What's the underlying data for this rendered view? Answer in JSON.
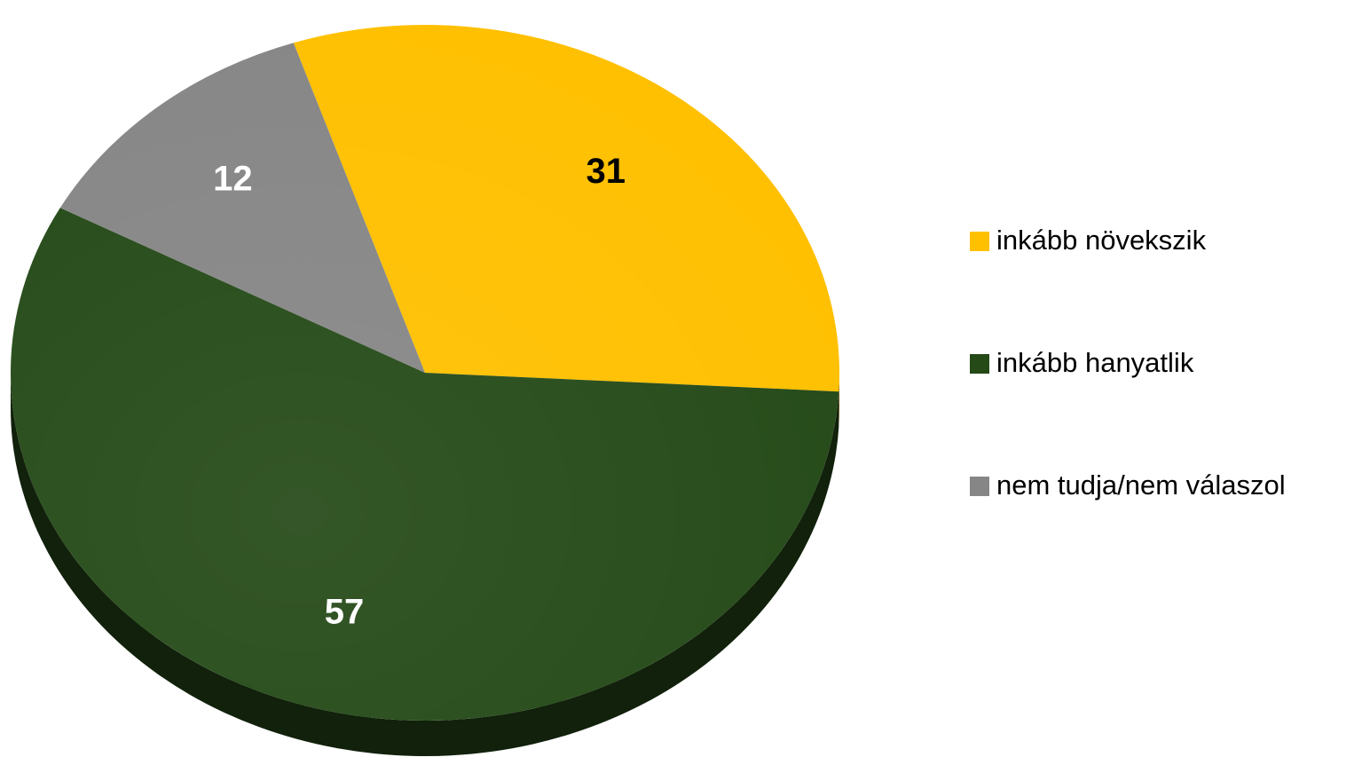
{
  "chart_data": {
    "type": "pie",
    "categories": [
      "inkább növekszik",
      "inkább hanyatlik",
      "nem tudja/nem válaszol"
    ],
    "values": [
      31,
      57,
      12
    ],
    "colors": [
      "#ffc000",
      "#254a18",
      "#868686"
    ],
    "legend": "right"
  }
}
